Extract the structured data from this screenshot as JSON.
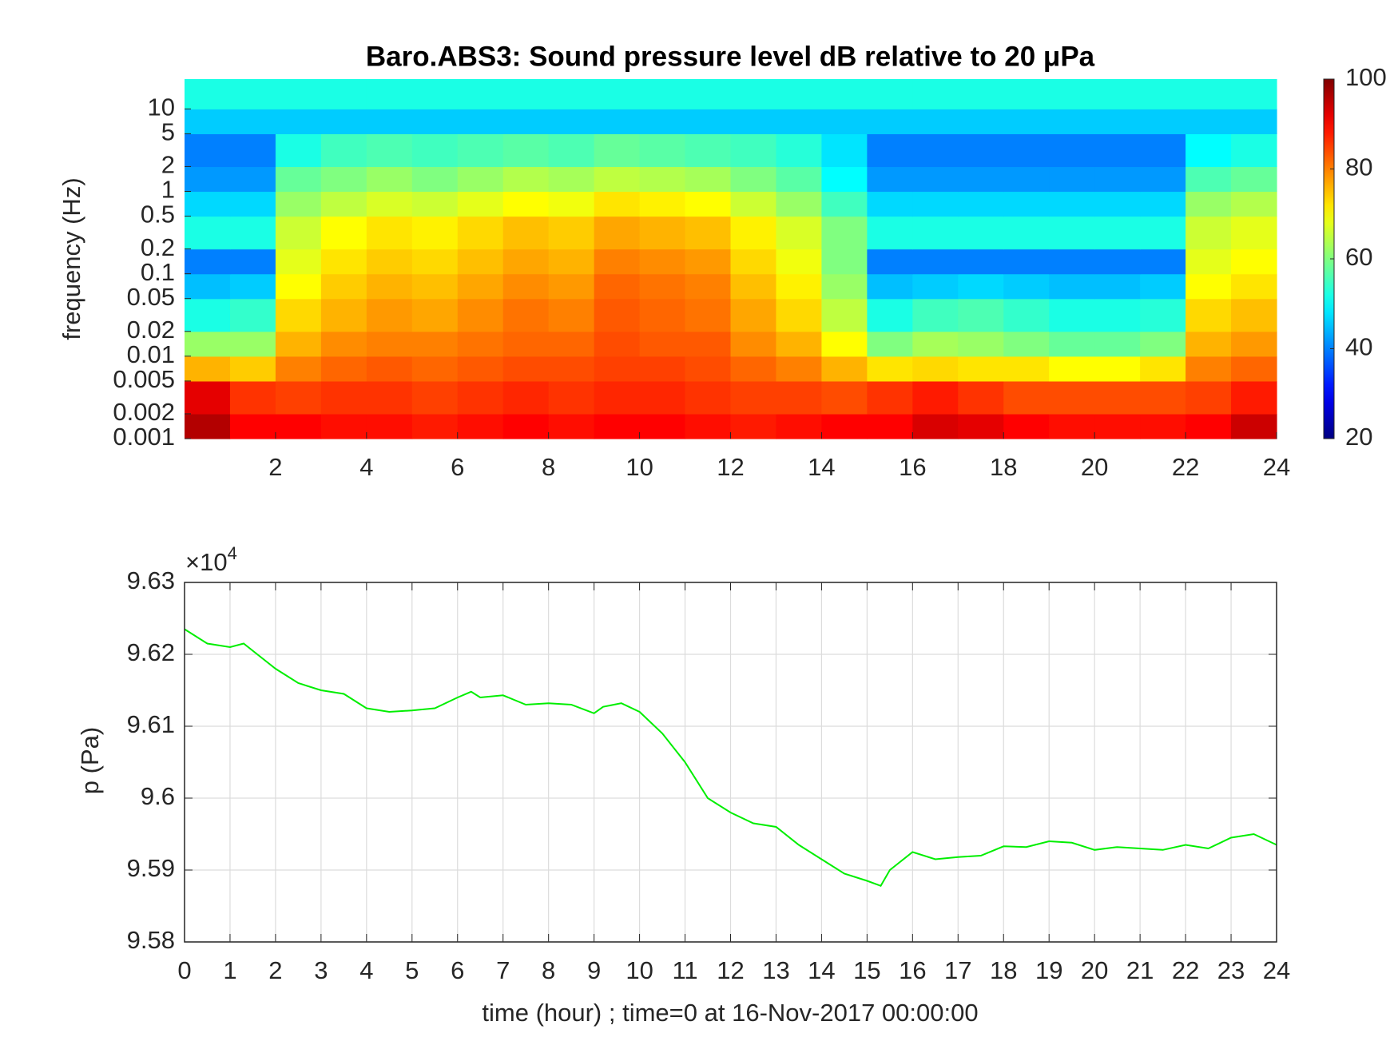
{
  "chart_data": [
    {
      "type": "heatmap",
      "title": "Baro.ABS3: Sound pressure level dB relative to 20 μPa",
      "ylabel": "frequency (Hz)",
      "colormap": "jet",
      "log_y": true,
      "xlim": [
        0,
        24
      ],
      "ylim": [
        0.001,
        23
      ],
      "xticks": [
        2,
        4,
        6,
        8,
        10,
        12,
        14,
        16,
        18,
        20,
        22,
        24
      ],
      "yticks": [
        0.001,
        0.002,
        0.005,
        0.01,
        0.02,
        0.05,
        0.1,
        0.2,
        0.5,
        1,
        2,
        5,
        10
      ],
      "x_bins": [
        0,
        1,
        2,
        3,
        4,
        5,
        6,
        7,
        8,
        9,
        10,
        11,
        12,
        13,
        14,
        15,
        16,
        17,
        18,
        19,
        20,
        21,
        22,
        23,
        24
      ],
      "y_bins": [
        0.001,
        0.002,
        0.005,
        0.01,
        0.02,
        0.05,
        0.1,
        0.2,
        0.5,
        1,
        2,
        5,
        10,
        23
      ],
      "values": [
        [
          96,
          90,
          90,
          89,
          89,
          88,
          89,
          90,
          89,
          90,
          90,
          89,
          88,
          89,
          90,
          90,
          93,
          92,
          90,
          89,
          89,
          89,
          90,
          94
        ],
        [
          92,
          86,
          85,
          86,
          86,
          85,
          86,
          87,
          86,
          87,
          87,
          86,
          85,
          85,
          84,
          86,
          88,
          86,
          84,
          84,
          84,
          84,
          85,
          88
        ],
        [
          76,
          74,
          80,
          82,
          83,
          82,
          83,
          84,
          84,
          85,
          85,
          84,
          82,
          80,
          76,
          72,
          73,
          72,
          72,
          70,
          70,
          72,
          80,
          82
        ],
        [
          62,
          62,
          76,
          79,
          80,
          80,
          81,
          82,
          82,
          84,
          83,
          83,
          79,
          76,
          70,
          60,
          63,
          62,
          60,
          58,
          58,
          60,
          76,
          78
        ],
        [
          52,
          54,
          73,
          76,
          78,
          77,
          79,
          81,
          80,
          83,
          82,
          81,
          77,
          73,
          65,
          52,
          55,
          56,
          54,
          52,
          52,
          53,
          73,
          75
        ],
        [
          45,
          46,
          70,
          74,
          76,
          75,
          77,
          79,
          78,
          82,
          81,
          80,
          75,
          71,
          62,
          45,
          46,
          47,
          46,
          45,
          45,
          46,
          70,
          72
        ],
        [
          40,
          40,
          68,
          72,
          74,
          73,
          75,
          77,
          76,
          80,
          79,
          78,
          73,
          69,
          60,
          40,
          40,
          40,
          40,
          40,
          40,
          40,
          68,
          70
        ],
        [
          52,
          52,
          66,
          70,
          72,
          71,
          73,
          75,
          74,
          77,
          76,
          75,
          71,
          67,
          60,
          52,
          52,
          52,
          52,
          52,
          52,
          52,
          66,
          68
        ],
        [
          47,
          47,
          62,
          65,
          67,
          66,
          68,
          70,
          69,
          72,
          71,
          70,
          66,
          62,
          55,
          47,
          47,
          47,
          47,
          47,
          47,
          47,
          62,
          64
        ],
        [
          42,
          42,
          58,
          60,
          62,
          60,
          62,
          64,
          63,
          65,
          64,
          63,
          60,
          57,
          50,
          42,
          42,
          42,
          42,
          42,
          42,
          42,
          56,
          58
        ],
        [
          40,
          40,
          52,
          55,
          56,
          55,
          56,
          57,
          56,
          58,
          57,
          56,
          55,
          53,
          48,
          40,
          40,
          40,
          40,
          40,
          40,
          40,
          50,
          52
        ],
        [
          46,
          46,
          46,
          46,
          46,
          46,
          46,
          46,
          46,
          46,
          46,
          46,
          46,
          46,
          46,
          46,
          46,
          46,
          46,
          46,
          46,
          46,
          46,
          46
        ],
        [
          52,
          52,
          52,
          52,
          52,
          52,
          52,
          52,
          52,
          52,
          52,
          52,
          52,
          52,
          52,
          52,
          52,
          52,
          52,
          52,
          52,
          52,
          52,
          52
        ]
      ],
      "colorbar": {
        "clim": [
          20,
          100
        ],
        "ticks": [
          20,
          40,
          60,
          80,
          100
        ]
      }
    },
    {
      "type": "line",
      "ylabel": "p (Pa)",
      "xlabel": "time (hour) ; time=0 at 16-Nov-2017 00:00:00",
      "y_exponent": {
        "base": "×10",
        "power": "4"
      },
      "color": "#00ee00",
      "grid": true,
      "xlim": [
        0,
        24
      ],
      "ylim": [
        9.58,
        9.63
      ],
      "xticks": [
        0,
        1,
        2,
        3,
        4,
        5,
        6,
        7,
        8,
        9,
        10,
        11,
        12,
        13,
        14,
        15,
        16,
        17,
        18,
        19,
        20,
        21,
        22,
        23,
        24
      ],
      "yticks": [
        9.58,
        9.59,
        9.6,
        9.61,
        9.62,
        9.63
      ],
      "x": [
        0,
        0.5,
        1,
        1.3,
        1.5,
        2,
        2.5,
        3,
        3.5,
        4,
        4.5,
        5,
        5.5,
        6,
        6.3,
        6.5,
        7,
        7.5,
        8,
        8.5,
        9,
        9.2,
        9.6,
        10,
        10.5,
        11,
        11.5,
        12,
        12.5,
        13,
        13.5,
        14,
        14.5,
        15,
        15.3,
        15.5,
        16,
        16.5,
        17,
        17.5,
        18,
        18.5,
        19,
        19.5,
        20,
        20.5,
        21,
        21.5,
        22,
        22.5,
        23,
        23.5,
        24
      ],
      "values": [
        9.6235,
        9.6215,
        9.621,
        9.6215,
        9.6205,
        9.618,
        9.616,
        9.615,
        9.6145,
        9.6125,
        9.612,
        9.6122,
        9.6125,
        9.614,
        9.6148,
        9.614,
        9.6143,
        9.613,
        9.6132,
        9.613,
        9.6118,
        9.6127,
        9.6132,
        9.612,
        9.609,
        9.605,
        9.6,
        9.598,
        9.5965,
        9.596,
        9.5935,
        9.5915,
        9.5895,
        9.5885,
        9.5878,
        9.59,
        9.5925,
        9.5915,
        9.5918,
        9.592,
        9.5933,
        9.5932,
        9.594,
        9.5938,
        9.5928,
        9.5932,
        9.593,
        9.5928,
        9.5935,
        9.593,
        9.5945,
        9.595,
        9.5935
      ]
    }
  ]
}
